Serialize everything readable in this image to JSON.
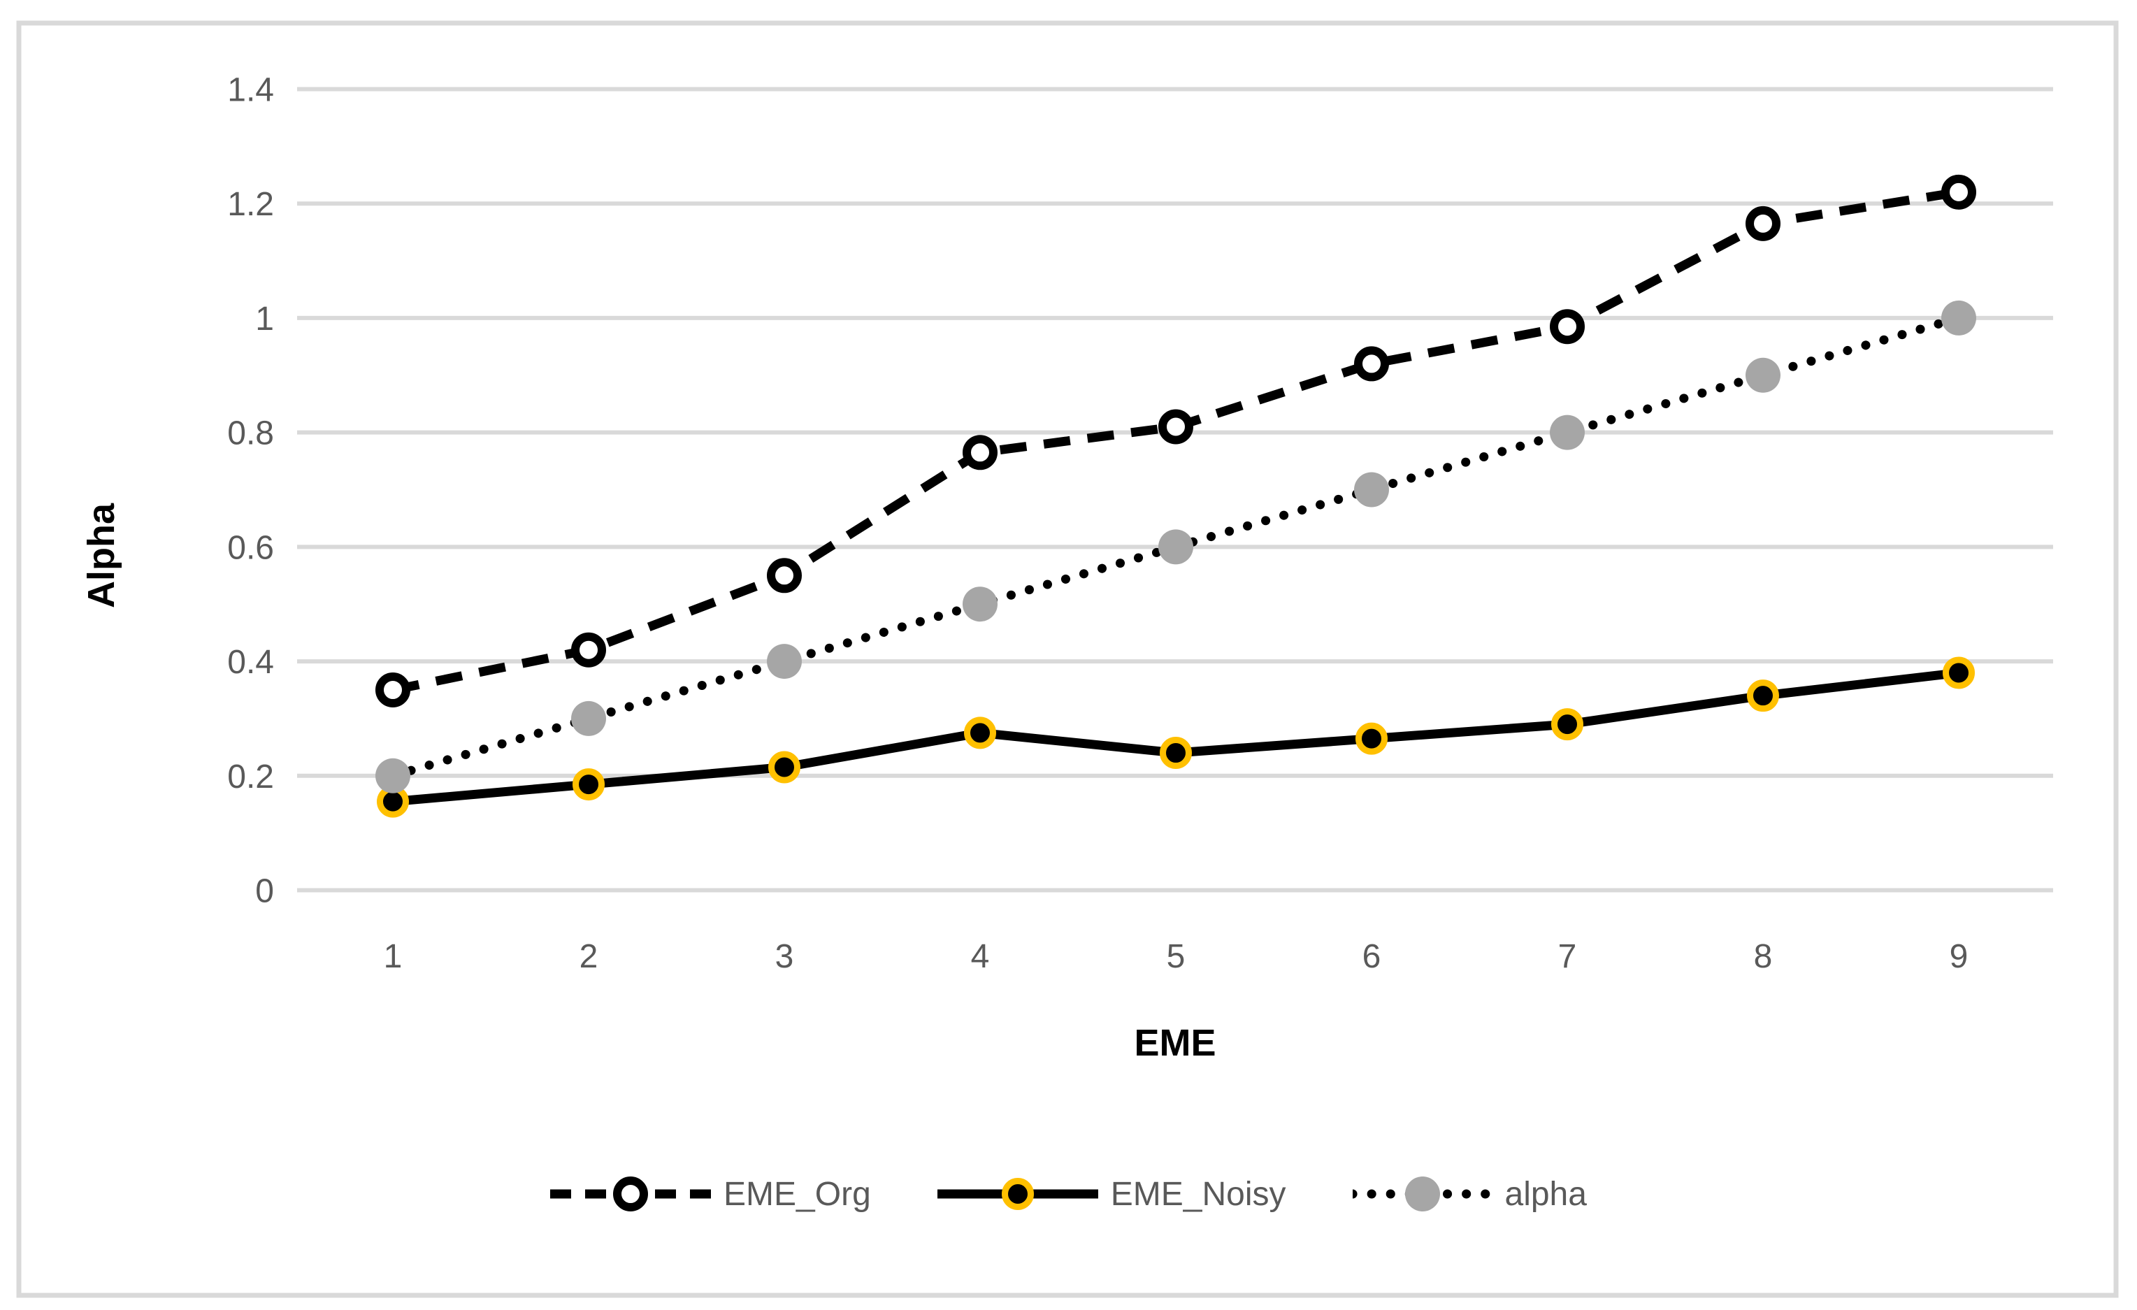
{
  "chart_data": {
    "type": "line",
    "title": "",
    "xlabel": "EME",
    "ylabel": "Alpha",
    "x": [
      1,
      2,
      3,
      4,
      5,
      6,
      7,
      8,
      9
    ],
    "ylim": [
      0,
      1.4
    ],
    "y_ticks": [
      0,
      0.2,
      0.4,
      0.6,
      0.8,
      1,
      1.2,
      1.4
    ],
    "y_tick_labels": [
      "0",
      "0.2",
      "0.4",
      "0.6",
      "0.8",
      "1",
      "1.2",
      "1.4"
    ],
    "grid": "horizontal",
    "legend_position": "bottom",
    "series": [
      {
        "name": "EME_Org",
        "values": [
          0.35,
          0.42,
          0.55,
          0.765,
          0.81,
          0.92,
          0.985,
          1.165,
          1.22
        ],
        "line_style": "dashed",
        "line_color": "#000000",
        "marker_shape": "circle",
        "marker_fill": "#FFFFFF",
        "marker_stroke": "#000000"
      },
      {
        "name": "EME_Noisy",
        "values": [
          0.155,
          0.185,
          0.215,
          0.275,
          0.24,
          0.265,
          0.29,
          0.34,
          0.38
        ],
        "line_style": "solid",
        "line_color": "#000000",
        "marker_shape": "circle",
        "marker_fill": "#000000",
        "marker_stroke": "#FFC000"
      },
      {
        "name": "alpha",
        "values": [
          0.2,
          0.3,
          0.4,
          0.5,
          0.6,
          0.7,
          0.8,
          0.9,
          1.0
        ],
        "line_style": "dotted",
        "line_color": "#000000",
        "marker_shape": "circle",
        "marker_fill": "#A6A6A6",
        "marker_stroke": "none"
      }
    ]
  },
  "colors": {
    "tick_text": "#595959",
    "gridline": "#D9D9D9",
    "frame_border": "#D9D9D9",
    "axis_title": "#000000",
    "gold_ring": "#FFC000",
    "gray_marker": "#A6A6A6",
    "line_black": "#000000",
    "background": "#FFFFFF"
  }
}
